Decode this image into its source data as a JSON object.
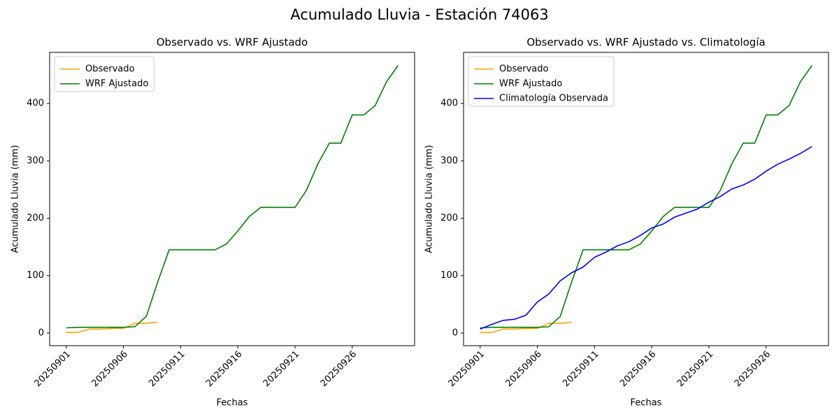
{
  "title": "Acumulado Lluvia - Estación 74063",
  "chart_data": [
    {
      "type": "line",
      "title": "Observado vs. WRF Ajustado",
      "xlabel": "Fechas",
      "ylabel": "Acumulado Lluvia (mm)",
      "categories": [
        "20250901",
        null,
        null,
        null,
        null,
        "20250906",
        null,
        null,
        null,
        null,
        "20250911",
        null,
        null,
        null,
        null,
        "20250916",
        null,
        null,
        null,
        null,
        "20250921",
        null,
        null,
        null,
        null,
        "20250926",
        null,
        null,
        null,
        null
      ],
      "series": [
        {
          "name": "Observado",
          "color": "orange",
          "values": [
            1,
            1,
            7,
            7,
            8,
            8,
            17,
            17,
            19,
            null,
            null,
            null,
            null,
            null,
            null,
            null,
            null,
            null,
            null,
            null,
            null,
            null,
            null,
            null,
            null,
            null,
            null,
            null,
            null,
            null
          ]
        },
        {
          "name": "WRF Ajustado",
          "color": "green",
          "values": [
            9,
            10,
            10,
            10,
            10,
            10,
            11,
            29,
            89,
            145,
            145,
            145,
            145,
            145,
            155,
            178,
            203,
            219,
            219,
            219,
            219,
            249,
            295,
            331,
            331,
            380,
            380,
            396,
            438,
            466
          ]
        }
      ],
      "ylim": [
        -22,
        489
      ],
      "yticks": [
        0,
        100,
        200,
        300,
        400
      ],
      "legend": "upper left"
    },
    {
      "type": "line",
      "title": "Observado vs. WRF Ajustado vs. Climatología",
      "xlabel": "Fechas",
      "ylabel": "Acumulado Lluvia (mm)",
      "categories": [
        "20250901",
        null,
        null,
        null,
        null,
        "20250906",
        null,
        null,
        null,
        null,
        "20250911",
        null,
        null,
        null,
        null,
        "20250916",
        null,
        null,
        null,
        null,
        "20250921",
        null,
        null,
        null,
        null,
        "20250926",
        null,
        null,
        null,
        null
      ],
      "series": [
        {
          "name": "Observado",
          "color": "orange",
          "values": [
            1,
            1,
            7,
            7,
            8,
            8,
            17,
            17,
            19,
            null,
            null,
            null,
            null,
            null,
            null,
            null,
            null,
            null,
            null,
            null,
            null,
            null,
            null,
            null,
            null,
            null,
            null,
            null,
            null,
            null
          ]
        },
        {
          "name": "WRF Ajustado",
          "color": "green",
          "values": [
            9,
            10,
            10,
            10,
            10,
            10,
            11,
            29,
            89,
            145,
            145,
            145,
            145,
            145,
            155,
            178,
            203,
            219,
            219,
            219,
            219,
            249,
            295,
            331,
            331,
            380,
            380,
            396,
            438,
            466
          ]
        },
        {
          "name": "Climatología Observada",
          "color": "blue",
          "values": [
            7,
            15,
            22,
            24,
            31,
            54,
            68,
            91,
            105,
            115,
            132,
            141,
            152,
            159,
            170,
            183,
            190,
            202,
            209,
            216,
            228,
            238,
            251,
            258,
            268,
            282,
            294,
            303,
            313,
            325
          ]
        }
      ],
      "ylim": [
        -22,
        489
      ],
      "yticks": [
        0,
        100,
        200,
        300,
        400
      ],
      "legend": "upper left"
    }
  ]
}
